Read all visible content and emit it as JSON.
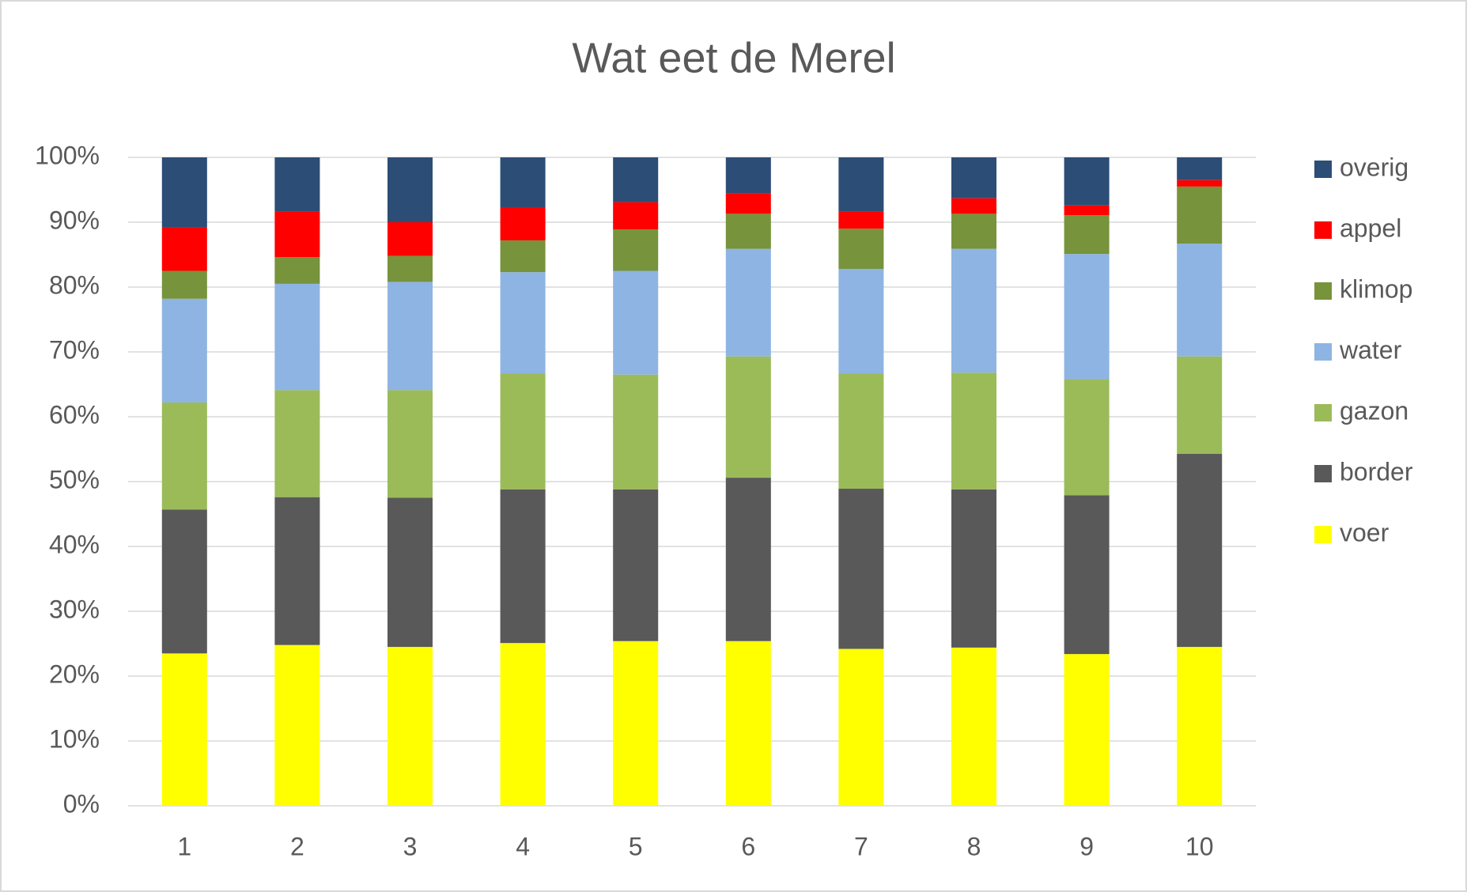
{
  "chart_data": {
    "type": "stacked_bar_100",
    "title": "Wat eet de Merel",
    "categories": [
      "1",
      "2",
      "3",
      "4",
      "5",
      "6",
      "7",
      "8",
      "9",
      "10"
    ],
    "series": [
      {
        "name": "voer",
        "color": "#ffff00",
        "values": [
          23.5,
          24.8,
          24.5,
          25.1,
          25.4,
          25.4,
          24.2,
          24.4,
          23.4,
          24.5
        ]
      },
      {
        "name": "border",
        "color": "#595959",
        "values": [
          22.2,
          22.8,
          23.0,
          23.7,
          23.4,
          25.2,
          24.7,
          24.4,
          24.5,
          29.8
        ]
      },
      {
        "name": "gazon",
        "color": "#9bbb59",
        "values": [
          16.5,
          16.5,
          16.6,
          17.9,
          17.7,
          18.7,
          17.8,
          18.0,
          17.9,
          15.0
        ]
      },
      {
        "name": "water",
        "color": "#8eb4e3",
        "values": [
          16.0,
          16.4,
          16.7,
          15.6,
          16.0,
          16.6,
          16.1,
          19.1,
          19.3,
          17.4
        ]
      },
      {
        "name": "klimop",
        "color": "#77933c",
        "values": [
          4.3,
          4.1,
          4.0,
          4.9,
          6.4,
          5.4,
          6.2,
          5.4,
          6.0,
          8.8
        ]
      },
      {
        "name": "appel",
        "color": "#ff0000",
        "values": [
          6.7,
          7.0,
          5.2,
          5.0,
          4.2,
          3.2,
          2.6,
          2.4,
          1.5,
          1.0
        ]
      },
      {
        "name": "overig",
        "color": "#2c4d75",
        "values": [
          10.8,
          8.4,
          10.0,
          7.8,
          6.9,
          5.5,
          8.4,
          6.3,
          7.4,
          3.5
        ]
      }
    ],
    "ylim": [
      0,
      100
    ],
    "yticks": [
      {
        "value": 0,
        "label": "0%"
      },
      {
        "value": 10,
        "label": "10%"
      },
      {
        "value": 20,
        "label": "20%"
      },
      {
        "value": 30,
        "label": "30%"
      },
      {
        "value": 40,
        "label": "40%"
      },
      {
        "value": 50,
        "label": "50%"
      },
      {
        "value": 60,
        "label": "60%"
      },
      {
        "value": 70,
        "label": "70%"
      },
      {
        "value": 80,
        "label": "80%"
      },
      {
        "value": 90,
        "label": "90%"
      },
      {
        "value": 100,
        "label": "100%"
      }
    ],
    "grid": true,
    "legend": "right"
  }
}
